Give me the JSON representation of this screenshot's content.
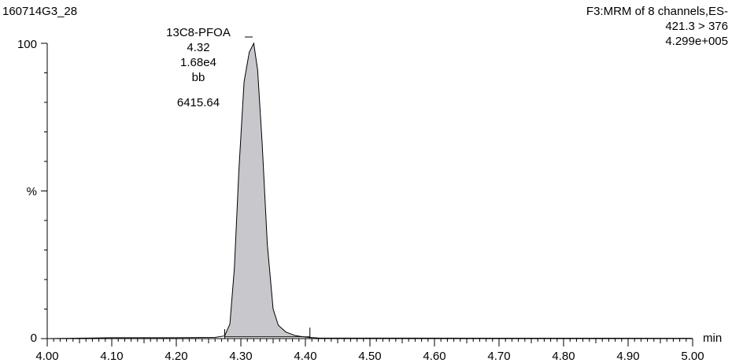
{
  "header": {
    "sample_id": "160714G3_28",
    "function_line": "F3:MRM of 8 channels,ES-",
    "transition": "421.3 > 376",
    "max_intensity": "4.299e+005"
  },
  "peak_label": {
    "name": "13C8-PFOA",
    "retention_time": "4.32",
    "height": "1.68e4",
    "integration_type": "bb",
    "area": "6415.64"
  },
  "chart_data": {
    "type": "area",
    "title": "",
    "xlabel": "min",
    "ylabel": "%",
    "xlim": [
      4.0,
      5.0
    ],
    "ylim": [
      0,
      100
    ],
    "x_ticks": [
      "4.00",
      "4.10",
      "4.20",
      "4.30",
      "4.40",
      "4.50",
      "4.60",
      "4.70",
      "4.80",
      "4.90",
      "5.00"
    ],
    "y_ticks": [
      "0",
      "100"
    ],
    "y_mid_label": "%",
    "fill_color": "#c8c8cc",
    "line_color": "#000000",
    "series": [
      {
        "x": [
          4.0,
          4.1,
          4.2,
          4.26,
          4.275,
          4.283,
          4.29,
          4.297,
          4.305,
          4.313,
          4.32,
          4.326,
          4.333,
          4.341,
          4.35,
          4.358,
          4.37,
          4.385,
          4.4,
          4.42,
          5.0
        ],
        "y": [
          0.0,
          0.3,
          0.3,
          0.4,
          0.9,
          5.0,
          24.0,
          57.0,
          87.0,
          97.0,
          100.0,
          91.0,
          66.0,
          32.0,
          10.0,
          4.5,
          2.2,
          1.0,
          0.5,
          0.2,
          0.1
        ]
      }
    ],
    "integration": {
      "start_x": 4.275,
      "end_x": 4.407,
      "baseline_y": [
        0.6,
        0.6
      ]
    }
  }
}
